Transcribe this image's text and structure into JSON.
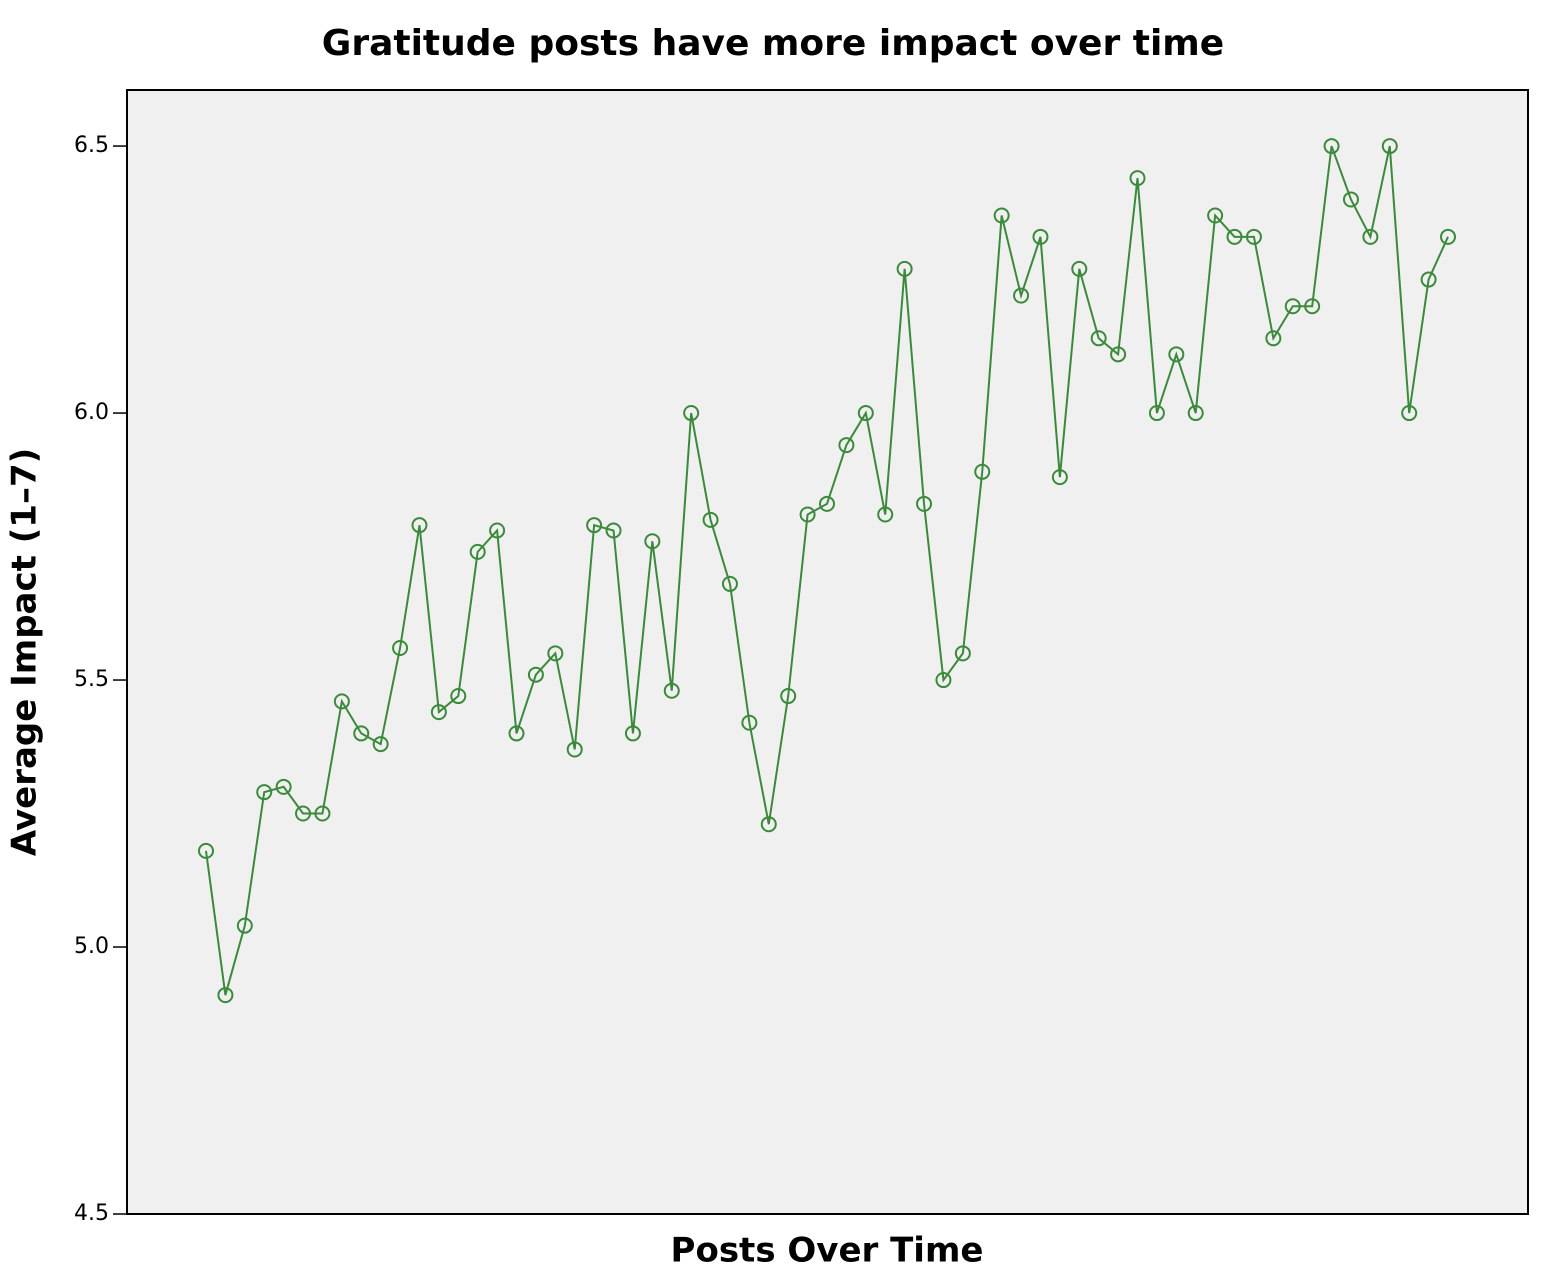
{
  "chart_data": {
    "type": "line",
    "title": "Gratitude posts have more impact over time",
    "x_label": "Posts Over Time",
    "y_label": "Average Impact (1–7)",
    "categories": [
      null,
      null,
      null,
      null,
      null,
      null,
      null,
      null,
      null,
      null,
      null,
      null,
      null,
      null,
      null,
      null,
      null,
      null,
      null,
      null,
      null,
      null,
      null,
      null,
      null,
      null,
      null,
      null,
      null,
      null,
      null,
      null,
      null,
      null,
      null,
      null,
      null,
      null,
      null,
      null,
      null,
      null,
      null,
      null,
      null,
      null,
      null,
      null,
      null,
      null,
      null,
      null,
      null,
      null,
      null,
      null,
      null,
      null,
      null,
      null,
      null,
      null,
      null,
      null,
      null
    ],
    "series": [
      {
        "name": "Average Impact",
        "color": "#3b8a3b",
        "values": [
          5.18,
          4.91,
          5.04,
          5.29,
          5.3,
          5.25,
          5.25,
          5.46,
          5.4,
          5.38,
          5.56,
          5.79,
          5.44,
          5.47,
          5.74,
          5.78,
          5.4,
          5.51,
          5.55,
          5.37,
          5.79,
          5.78,
          5.4,
          5.76,
          5.48,
          6.0,
          5.8,
          5.68,
          5.42,
          5.23,
          5.47,
          5.81,
          5.83,
          5.94,
          6.0,
          5.81,
          6.27,
          5.83,
          5.5,
          5.55,
          5.89,
          6.37,
          6.22,
          6.33,
          5.88,
          6.27,
          6.14,
          6.11,
          6.44,
          6.0,
          6.11,
          6.0,
          6.37,
          6.33,
          6.33,
          6.14,
          6.2,
          6.2,
          6.5,
          6.4,
          6.33,
          6.5,
          6.0,
          6.25,
          6.33
        ]
      }
    ],
    "ylim": [
      4.5,
      6.605
    ],
    "yticks": [
      {
        "value": 4.5,
        "label": "4.5"
      },
      {
        "value": 5,
        "label": "5.0"
      },
      {
        "value": 5.5,
        "label": "5.5"
      },
      {
        "value": 6,
        "label": "6.0"
      },
      {
        "value": 6.5,
        "label": "6.5"
      }
    ],
    "grid": false,
    "background": "#f0f0f0"
  }
}
